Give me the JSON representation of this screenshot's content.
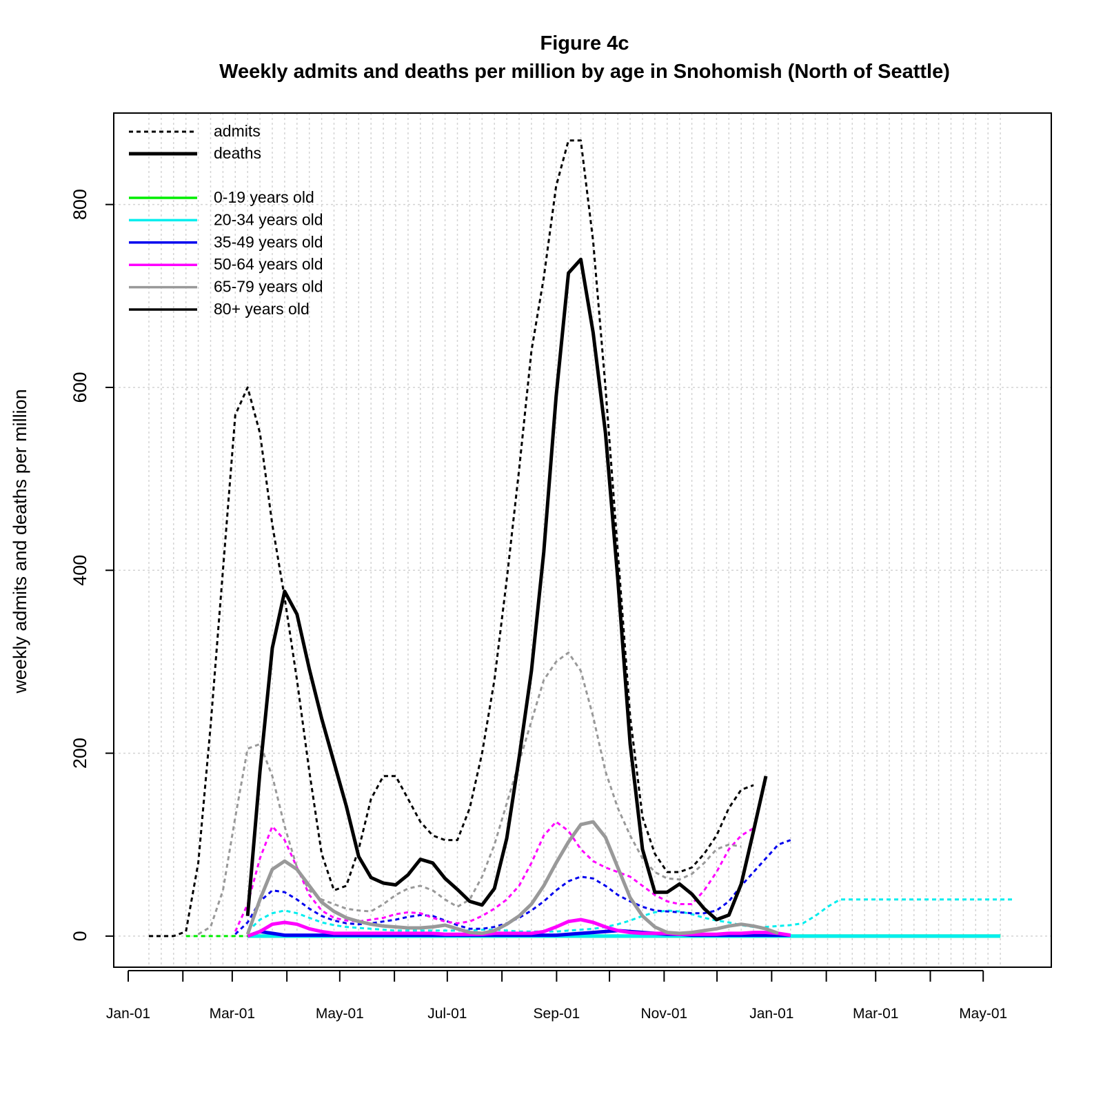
{
  "chart_data": {
    "type": "line",
    "title": "Figure 4c",
    "subtitle": "Weekly admits and deaths per million by age in Snohomish (North of Seattle)",
    "xlabel": "",
    "ylabel": "weekly admits and deaths per million",
    "ylim": [
      -34,
      900
    ],
    "y_ticks": [
      0,
      200,
      400,
      600,
      800
    ],
    "x_tick_labels": [
      "Jan-01",
      "Mar-01",
      "May-01",
      "Jul-01",
      "Sep-01",
      "Nov-01",
      "Jan-01",
      "Mar-01",
      "May-01"
    ],
    "grid": true,
    "legend_position": "top-left",
    "legend_linetypes": [
      {
        "label": "admits",
        "dash": "dotted",
        "color": "#000000"
      },
      {
        "label": "deaths",
        "dash": "solid",
        "color": "#000000"
      }
    ],
    "x_weeks": [
      0,
      1,
      2,
      3,
      4,
      5,
      6,
      7,
      8,
      9,
      10,
      11,
      12,
      13,
      14,
      15,
      16,
      17,
      18,
      19,
      20,
      21,
      22,
      23,
      24,
      25,
      26,
      27,
      28,
      29,
      30,
      31,
      32,
      33,
      34,
      35,
      36,
      37,
      38,
      39,
      40,
      41,
      42,
      43,
      44,
      45,
      46,
      47,
      48,
      49,
      50,
      51,
      52,
      53,
      54,
      55,
      56,
      57,
      58,
      59,
      60,
      61,
      62,
      63,
      64,
      65,
      66,
      67,
      68,
      69
    ],
    "series": [
      {
        "name": "0-19 years old",
        "color": "#00ee00",
        "kind": "admits",
        "start": 3,
        "values": [
          0,
          0,
          0,
          0,
          0,
          0,
          0,
          0,
          0,
          0,
          0,
          0,
          0,
          0,
          0,
          0,
          0,
          0,
          0,
          0,
          0,
          0,
          0,
          0,
          0,
          0,
          0,
          0,
          0,
          0,
          0,
          0,
          0,
          0,
          0,
          0,
          0,
          0,
          0,
          0,
          0,
          0,
          0,
          0,
          0,
          0,
          0,
          0,
          0,
          0,
          0,
          0,
          0,
          0,
          0,
          0,
          0,
          0,
          0,
          0,
          0,
          0,
          0,
          0,
          0,
          0,
          0
        ]
      },
      {
        "name": "0-19 years old",
        "color": "#00ee00",
        "kind": "deaths",
        "start": 8,
        "values": [
          0,
          0,
          0,
          0,
          0,
          0,
          0,
          0,
          0,
          0,
          0,
          0,
          0,
          0,
          0,
          0,
          0,
          0,
          0,
          0,
          0,
          0,
          0,
          0,
          0,
          0,
          0,
          0,
          0,
          0,
          0,
          0,
          0,
          0,
          0,
          0,
          0,
          0,
          0,
          0,
          0,
          0,
          0,
          0,
          0,
          0,
          0,
          0,
          0,
          0,
          0,
          0,
          0,
          0,
          0,
          0,
          0,
          0,
          0,
          0,
          0,
          0
        ]
      },
      {
        "name": "20-34 years old",
        "color": "#00eeee",
        "kind": "admits",
        "start": 8,
        "values": [
          5,
          18,
          25,
          28,
          25,
          20,
          15,
          12,
          10,
          9,
          8,
          7,
          6,
          6,
          6,
          6,
          6,
          6,
          6,
          7,
          7,
          6,
          5,
          5,
          5,
          5,
          6,
          7,
          8,
          10,
          13,
          17,
          22,
          26,
          28,
          27,
          24,
          20,
          17,
          15,
          12,
          10,
          10,
          11,
          12,
          14,
          22,
          32,
          40,
          40,
          40,
          40,
          40,
          40,
          40,
          40,
          40,
          40,
          40,
          40,
          40,
          40,
          40
        ]
      },
      {
        "name": "20-34 years old",
        "color": "#00eeee",
        "kind": "deaths",
        "start": 8,
        "values": [
          0,
          0,
          0,
          0,
          0,
          0,
          0,
          0,
          0,
          0,
          0,
          0,
          0,
          0,
          0,
          0,
          0,
          0,
          0,
          0,
          0,
          0,
          0,
          0,
          0,
          0,
          0,
          0,
          0,
          0,
          0,
          0,
          0,
          0,
          0,
          0,
          0,
          0,
          0,
          0,
          0,
          0,
          0,
          0,
          0,
          0,
          0,
          0,
          0,
          0,
          0,
          0,
          0,
          0,
          0,
          0,
          0,
          0,
          0,
          0,
          0,
          0
        ]
      },
      {
        "name": "35-49 years old",
        "color": "#0000ee",
        "kind": "admits",
        "start": 7,
        "values": [
          2,
          15,
          38,
          50,
          48,
          40,
          30,
          22,
          17,
          14,
          13,
          14,
          16,
          18,
          21,
          23,
          22,
          17,
          12,
          8,
          8,
          10,
          14,
          20,
          28,
          38,
          50,
          60,
          65,
          63,
          55,
          45,
          38,
          32,
          28,
          27,
          26,
          25,
          25,
          28,
          38,
          55,
          70,
          85,
          100,
          105
        ]
      },
      {
        "name": "35-49 years old",
        "color": "#0000ee",
        "kind": "deaths",
        "start": 8,
        "values": [
          0,
          5,
          3,
          1,
          1,
          1,
          1,
          1,
          1,
          1,
          1,
          1,
          1,
          1,
          1,
          1,
          1,
          1,
          1,
          1,
          1,
          1,
          1,
          1,
          1,
          1,
          2,
          3,
          4,
          5,
          6,
          5,
          4,
          3,
          2,
          2,
          1,
          1,
          1,
          1,
          1,
          1,
          1,
          1,
          1
        ]
      },
      {
        "name": "50-64 years old",
        "color": "#ff00ff",
        "kind": "admits",
        "start": 7,
        "values": [
          5,
          35,
          85,
          120,
          105,
          75,
          45,
          28,
          20,
          17,
          16,
          18,
          20,
          24,
          26,
          25,
          20,
          16,
          14,
          16,
          22,
          30,
          40,
          55,
          80,
          110,
          125,
          115,
          95,
          82,
          75,
          70,
          65,
          55,
          45,
          38,
          35,
          35,
          50,
          70,
          95,
          110,
          118
        ]
      },
      {
        "name": "50-64 years old",
        "color": "#ff00ff",
        "kind": "deaths",
        "start": 8,
        "values": [
          0,
          5,
          13,
          15,
          13,
          8,
          5,
          3,
          3,
          3,
          3,
          3,
          3,
          3,
          3,
          3,
          2,
          2,
          2,
          2,
          3,
          3,
          3,
          3,
          5,
          10,
          16,
          18,
          15,
          10,
          6,
          4,
          3,
          3,
          3,
          2,
          2,
          2,
          2,
          3,
          3,
          4,
          4,
          3,
          1
        ]
      },
      {
        "name": "65-79 years old",
        "color": "#999999",
        "kind": "admits",
        "start": 4,
        "values": [
          2,
          10,
          50,
          130,
          205,
          210,
          175,
          120,
          75,
          50,
          40,
          35,
          30,
          28,
          27,
          35,
          45,
          52,
          55,
          50,
          40,
          32,
          40,
          65,
          100,
          145,
          190,
          235,
          280,
          300,
          310,
          290,
          240,
          180,
          140,
          110,
          85,
          70,
          63,
          62,
          68,
          80,
          95,
          100,
          98
        ]
      },
      {
        "name": "65-79 years old",
        "color": "#999999",
        "kind": "deaths",
        "start": 8,
        "values": [
          2,
          40,
          73,
          82,
          73,
          55,
          37,
          27,
          20,
          16,
          13,
          11,
          10,
          9,
          9,
          10,
          12,
          8,
          4,
          3,
          6,
          13,
          22,
          35,
          55,
          80,
          103,
          122,
          125,
          108,
          75,
          42,
          22,
          10,
          4,
          3,
          4,
          6,
          8,
          11,
          13,
          11,
          8,
          3
        ]
      },
      {
        "name": "80+ years old",
        "color": "#000000",
        "kind": "admits",
        "start": 0,
        "values": [
          0,
          0,
          0,
          5,
          80,
          230,
          400,
          570,
          600,
          550,
          450,
          370,
          280,
          180,
          90,
          50,
          55,
          95,
          150,
          175,
          175,
          150,
          125,
          110,
          105,
          105,
          140,
          200,
          280,
          390,
          510,
          640,
          720,
          820,
          870,
          870,
          760,
          600,
          420,
          240,
          130,
          90,
          70,
          70,
          75,
          90,
          110,
          140,
          160,
          165
        ]
      },
      {
        "name": "80+ years old",
        "color": "#000000",
        "kind": "deaths",
        "start": 8,
        "values": [
          22,
          180,
          315,
          377,
          352,
          292,
          238,
          190,
          142,
          87,
          64,
          58,
          56,
          67,
          84,
          80,
          63,
          51,
          38,
          34,
          52,
          107,
          195,
          290,
          420,
          590,
          725,
          740,
          660,
          550,
          390,
          210,
          95,
          48,
          48,
          57,
          46,
          30,
          18,
          23,
          57,
          115,
          175
        ]
      }
    ]
  }
}
